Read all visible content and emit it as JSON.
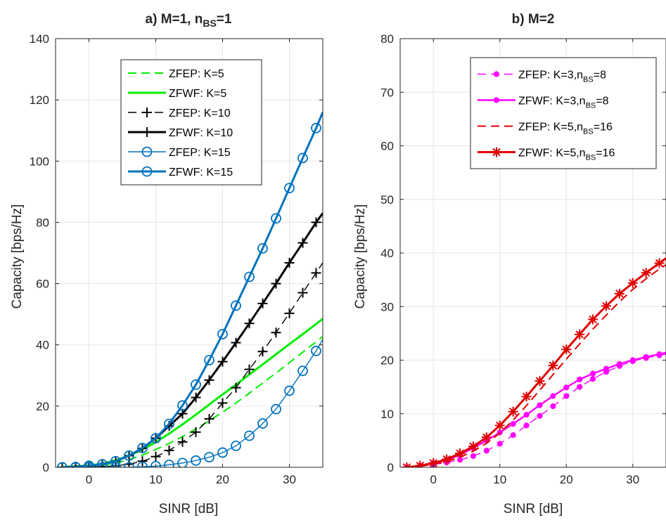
{
  "chart_data": [
    {
      "type": "line",
      "title": "a) M=1, n",
      "title_sub": "BS",
      "title_end": "=1",
      "xlabel": "SINR [dB]",
      "ylabel": "Capacity [bps/Hz]",
      "xlim": [
        -5,
        35
      ],
      "ylim": [
        0,
        140
      ],
      "xticks": [
        0,
        10,
        20,
        30
      ],
      "yticks": [
        0,
        20,
        40,
        60,
        80,
        100,
        120,
        140
      ],
      "grid": true,
      "legend_position": "top-right",
      "x": [
        -4,
        -2,
        0,
        2,
        4,
        6,
        8,
        10,
        12,
        14,
        16,
        18,
        20,
        22,
        24,
        26,
        28,
        30,
        32,
        34,
        35
      ],
      "series": [
        {
          "name": "ZFEP: K=5",
          "color": "#00ee00",
          "dash": true,
          "width": 2,
          "marker": "none",
          "values": [
            0,
            0.1,
            0.3,
            0.7,
            1.4,
            2.5,
            4.0,
            5.8,
            7.8,
            10.0,
            12.5,
            15.2,
            18.0,
            21.0,
            24.2,
            27.5,
            30.8,
            34.2,
            37.6,
            41.0,
            42.7
          ]
        },
        {
          "name": "ZFWF: K=5",
          "color": "#00ee00",
          "dash": false,
          "width": 3,
          "marker": "none",
          "values": [
            0.1,
            0.3,
            0.6,
            1.2,
            2.3,
            3.8,
            5.8,
            8.2,
            11.0,
            14.0,
            17.2,
            20.5,
            23.8,
            27.0,
            30.3,
            33.6,
            36.9,
            40.2,
            43.5,
            46.8,
            48.5
          ]
        },
        {
          "name": "ZFEP: K=10",
          "color": "#000000",
          "dash": true,
          "width": 1.4,
          "marker": "plus",
          "values": [
            0,
            0,
            0.1,
            0.2,
            0.5,
            1.0,
            2.0,
            3.5,
            5.5,
            8.3,
            11.5,
            15.8,
            21.0,
            26.0,
            32.0,
            37.8,
            44.0,
            50.3,
            57.0,
            63.5,
            66.8
          ]
        },
        {
          "name": "ZFWF: K=10",
          "color": "#000000",
          "dash": false,
          "width": 3,
          "marker": "plus",
          "values": [
            0,
            0.2,
            0.5,
            1.0,
            2.0,
            3.8,
            6.2,
            9.5,
            13.5,
            17.5,
            22.8,
            28.5,
            34.5,
            40.7,
            47.0,
            53.5,
            60.0,
            66.8,
            73.3,
            80.0,
            83.0
          ]
        },
        {
          "name": "ZFEP: K=15",
          "color": "#0072bd",
          "dash": false,
          "width": 1.4,
          "marker": "circle",
          "values": [
            0,
            0,
            0,
            0,
            0,
            0,
            0.2,
            0.4,
            0.8,
            1.4,
            2.2,
            3.3,
            4.8,
            7.0,
            10.3,
            14.3,
            19.0,
            25.0,
            31.5,
            38.0,
            41.8
          ]
        },
        {
          "name": "ZFWF: K=15",
          "color": "#0072bd",
          "dash": false,
          "width": 3,
          "marker": "circle",
          "values": [
            0,
            0.1,
            0.5,
            1.0,
            2.0,
            3.8,
            6.3,
            9.5,
            14.2,
            20.2,
            27.0,
            35.0,
            43.5,
            52.8,
            62.2,
            71.5,
            81.3,
            91.2,
            101.0,
            110.8,
            116.0
          ]
        }
      ]
    },
    {
      "type": "line",
      "title": "b) M=2",
      "xlabel": "SINR [dB]",
      "ylabel": "Capacity [bps/Hz]",
      "xlim": [
        -5,
        35
      ],
      "ylim": [
        0,
        80
      ],
      "xticks": [
        0,
        10,
        20,
        30
      ],
      "yticks": [
        0,
        10,
        20,
        30,
        40,
        50,
        60,
        70,
        80
      ],
      "grid": true,
      "legend_position": "top-right",
      "x": [
        -4,
        -2,
        0,
        2,
        4,
        6,
        8,
        10,
        12,
        14,
        16,
        18,
        20,
        22,
        24,
        26,
        28,
        30,
        32,
        34,
        35
      ],
      "series": [
        {
          "name": "ZFEP: K=3,n",
          "sub": "BS",
          "name_end": "=8",
          "color": "#ff00ff",
          "dash": true,
          "width": 1.4,
          "marker": "dot",
          "values": [
            0,
            0.2,
            0.5,
            0.9,
            1.4,
            2.1,
            3.1,
            4.4,
            6.0,
            7.8,
            9.6,
            11.4,
            13.3,
            15.0,
            16.5,
            17.8,
            18.9,
            19.8,
            20.4,
            20.9,
            21.1
          ]
        },
        {
          "name": "ZFWF: K=3,n",
          "sub": "BS",
          "name_end": "=8",
          "color": "#ff00ff",
          "dash": false,
          "width": 2.4,
          "marker": "dot",
          "values": [
            0,
            0.3,
            0.8,
            1.4,
            2.3,
            3.6,
            5.0,
            6.5,
            8.1,
            9.8,
            11.6,
            13.3,
            14.9,
            16.4,
            17.5,
            18.4,
            19.3,
            20.0,
            20.6,
            21.1,
            21.4
          ]
        },
        {
          "name": "ZFEP: K=5,n",
          "sub": "BS",
          "name_end": "=16",
          "color": "#e00000",
          "dash": true,
          "width": 2,
          "marker": "none",
          "values": [
            0,
            0.2,
            0.6,
            1.1,
            1.9,
            3.0,
            4.5,
            6.4,
            8.8,
            11.5,
            14.4,
            17.3,
            20.2,
            23.0,
            25.8,
            28.4,
            30.9,
            33.2,
            35.2,
            37.0,
            37.8
          ]
        },
        {
          "name": "ZFWF: K=5,n",
          "sub": "BS",
          "name_end": "=16",
          "color": "#e00000",
          "dash": false,
          "width": 3,
          "marker": "asterisk",
          "values": [
            0,
            0.3,
            0.8,
            1.5,
            2.6,
            3.9,
            5.6,
            7.8,
            10.4,
            13.2,
            16.1,
            19.0,
            22.0,
            24.8,
            27.6,
            30.1,
            32.4,
            34.4,
            36.3,
            38.1,
            39.0
          ]
        }
      ]
    }
  ]
}
